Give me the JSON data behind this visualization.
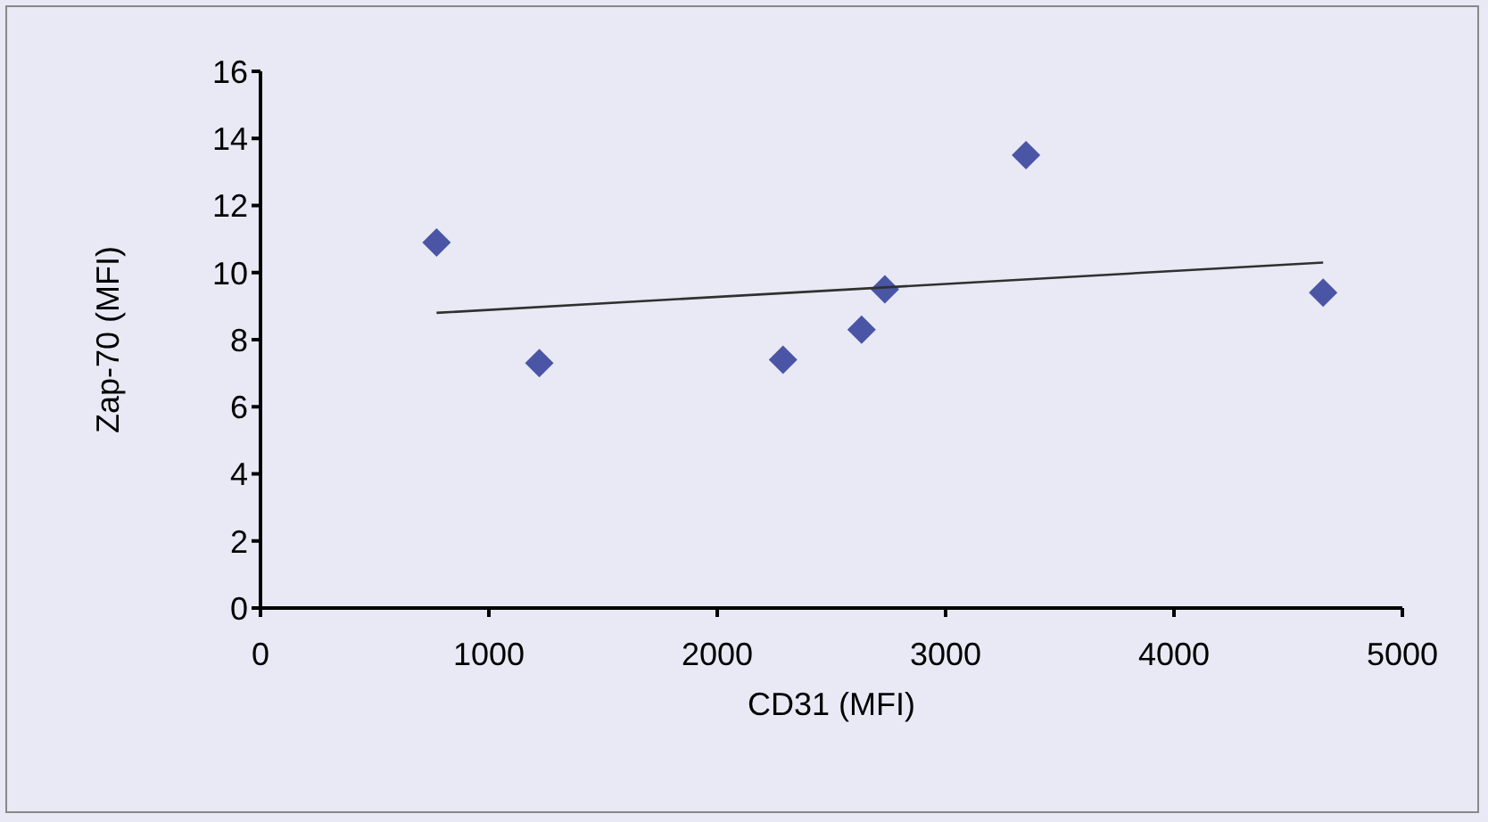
{
  "chart_data": {
    "type": "scatter",
    "xlabel": "CD31 (MFI)",
    "ylabel": "Zap-70 (MFI)",
    "xlim": [
      0,
      5000
    ],
    "xticks": [
      0,
      1000,
      2000,
      3000,
      4000,
      5000
    ],
    "ylim": [
      0,
      16
    ],
    "yticks": [
      0,
      2,
      4,
      6,
      8,
      10,
      12,
      14,
      16
    ],
    "grid": false,
    "marker": "diamond",
    "series": [
      {
        "color": "#4a55a6",
        "x": [
          771,
          1221,
          2288,
          2632,
          2734,
          3352,
          4653
        ],
        "values": [
          10.9,
          7.3,
          7.4,
          8.3,
          9.5,
          13.5,
          9.4
        ]
      },
      {
        "type": "line",
        "color": "#303030",
        "marker": "none",
        "x": [
          771,
          4653
        ],
        "values": [
          8.8,
          10.3
        ]
      }
    ]
  }
}
